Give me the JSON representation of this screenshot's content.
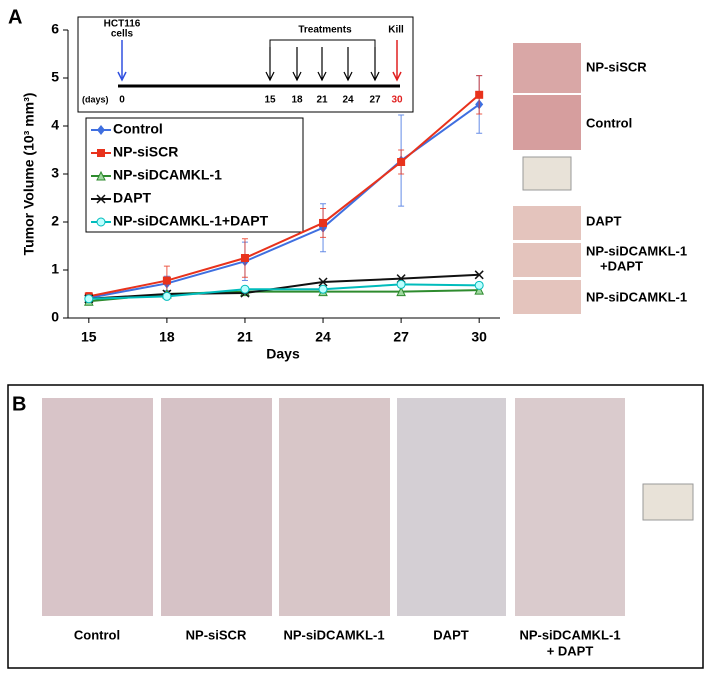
{
  "panels": [
    "A",
    "B"
  ],
  "chart_data": {
    "type": "line",
    "y_label": "Tumor Volume (10³ mm³)",
    "x_label": "Days",
    "x": [
      15,
      18,
      21,
      24,
      27,
      30
    ],
    "xlim": [
      14.2,
      30.8
    ],
    "xticks": [
      15,
      18,
      21,
      24,
      27,
      30
    ],
    "ylim": [
      0,
      6
    ],
    "yticks": [
      0,
      1,
      2,
      3,
      4,
      5,
      6
    ],
    "series": [
      {
        "name": "Control",
        "color": "#3f6fe0",
        "marker": "diamond",
        "values": [
          0.42,
          0.72,
          1.18,
          1.88,
          3.28,
          4.45
        ],
        "errors": [
          0.1,
          0.15,
          0.4,
          0.5,
          0.95,
          0.6
        ]
      },
      {
        "name": "NP-siSCR",
        "color": "#e8321c",
        "marker": "square",
        "values": [
          0.45,
          0.78,
          1.25,
          1.98,
          3.25,
          4.65
        ],
        "errors": [
          0.08,
          0.3,
          0.4,
          0.3,
          0.25,
          0.4
        ]
      },
      {
        "name": "NP-siDCAMKL-1",
        "color": "#2e8b2e",
        "marker": "triangle",
        "values": [
          0.35,
          0.5,
          0.55,
          0.55,
          0.55,
          0.58
        ]
      },
      {
        "name": "DAPT",
        "color": "#111111",
        "marker": "x",
        "values": [
          0.4,
          0.5,
          0.52,
          0.75,
          0.82,
          0.9
        ]
      },
      {
        "name": "NP-siDCAMKL-1+DAPT",
        "color": "#00bcbc",
        "marker": "circle",
        "values": [
          0.4,
          0.45,
          0.6,
          0.6,
          0.7,
          0.68
        ]
      }
    ]
  },
  "timeline": {
    "start": [
      "HCT116",
      "cells"
    ],
    "treatments": "Treatments",
    "kill": "Kill",
    "unit": "(days)",
    "days": [
      "0",
      "15",
      "18",
      "21",
      "24",
      "27",
      "30"
    ]
  },
  "tumor_photos": [
    "NP-siSCR",
    "Control",
    "DAPT",
    "NP-siDCAMKL-1",
    "+DAPT",
    "NP-siDCAMKL-1"
  ],
  "mice": [
    "Control",
    "NP-siSCR",
    "NP-siDCAMKL-1",
    "DAPT",
    "NP-siDCAMKL-1",
    "+ DAPT"
  ]
}
